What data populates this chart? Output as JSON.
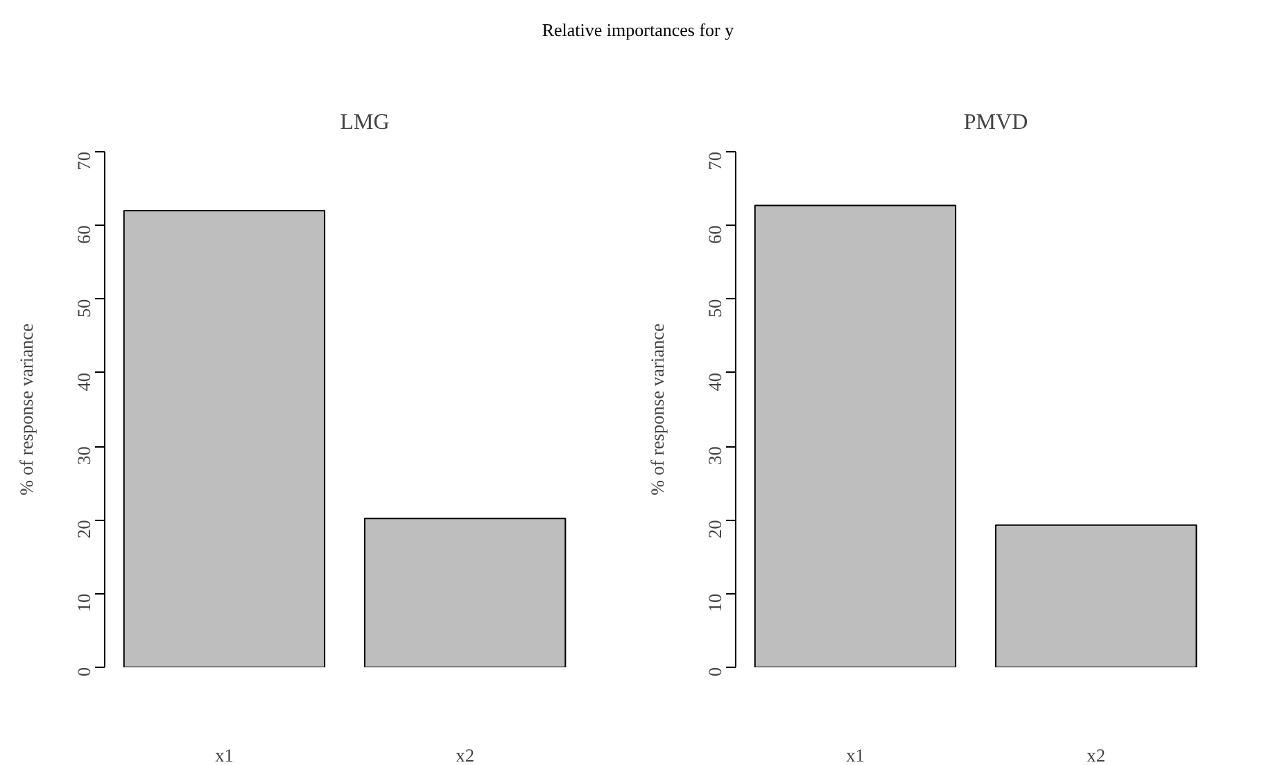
{
  "chart_data": [
    {
      "type": "bar",
      "title": "LMG",
      "annotations": [
        "Relative importances for y"
      ],
      "ylabel": "% of response variance",
      "categories": [
        "x1",
        "x2"
      ],
      "values": [
        62.0,
        20.2
      ],
      "color": "#bebebe",
      "ylim": [
        0,
        70
      ],
      "yticks": [
        0,
        10,
        20,
        30,
        40,
        50,
        60,
        70
      ],
      "grid": false
    },
    {
      "type": "bar",
      "title": "PMVD",
      "ylabel": "% of response variance",
      "categories": [
        "x1",
        "x2"
      ],
      "values": [
        62.7,
        19.3
      ],
      "color": "#bebebe",
      "ylim": [
        0,
        70
      ],
      "yticks": [
        0,
        10,
        20,
        30,
        40,
        50,
        60,
        70
      ],
      "grid": false
    }
  ]
}
